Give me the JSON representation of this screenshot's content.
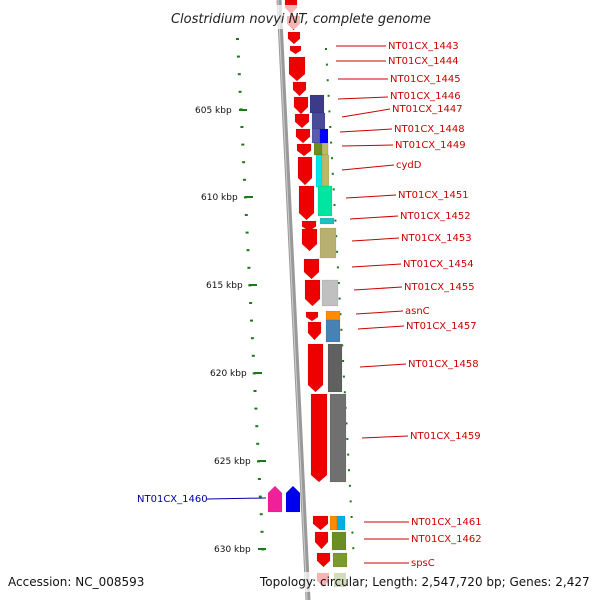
{
  "title": "Clostridium novyi NT, complete genome",
  "footer": {
    "accession": "Accession: NC_008593",
    "topology": "Topology: circular; Length: 2,547,720 bp; Genes: 2,427"
  },
  "colors": {
    "forward_label": "#cc0000",
    "reverse_label": "#0000aa",
    "scale_tick": "#1a7a1a",
    "backbone": "#888888"
  },
  "scale_labels": [
    "605 kbp",
    "610 kbp",
    "615 kbp",
    "620 kbp",
    "625 kbp",
    "630 kbp"
  ],
  "genes": [
    {
      "label": "NT01CX_1443",
      "strand": "forward"
    },
    {
      "label": "NT01CX_1444",
      "strand": "forward"
    },
    {
      "label": "NT01CX_1445",
      "strand": "forward"
    },
    {
      "label": "NT01CX_1446",
      "strand": "forward"
    },
    {
      "label": "NT01CX_1447",
      "strand": "forward"
    },
    {
      "label": "NT01CX_1448",
      "strand": "forward"
    },
    {
      "label": "NT01CX_1449",
      "strand": "forward"
    },
    {
      "label": "cydD",
      "strand": "forward"
    },
    {
      "label": "NT01CX_1451",
      "strand": "forward"
    },
    {
      "label": "NT01CX_1452",
      "strand": "forward"
    },
    {
      "label": "NT01CX_1453",
      "strand": "forward"
    },
    {
      "label": "NT01CX_1454",
      "strand": "forward"
    },
    {
      "label": "NT01CX_1455",
      "strand": "forward"
    },
    {
      "label": "asnC",
      "strand": "forward"
    },
    {
      "label": "NT01CX_1457",
      "strand": "forward"
    },
    {
      "label": "NT01CX_1458",
      "strand": "forward"
    },
    {
      "label": "NT01CX_1459",
      "strand": "forward"
    },
    {
      "label": "NT01CX_1460",
      "strand": "reverse"
    },
    {
      "label": "NT01CX_1461",
      "strand": "forward"
    },
    {
      "label": "NT01CX_1462",
      "strand": "forward"
    },
    {
      "label": "spsC",
      "strand": "forward"
    }
  ]
}
